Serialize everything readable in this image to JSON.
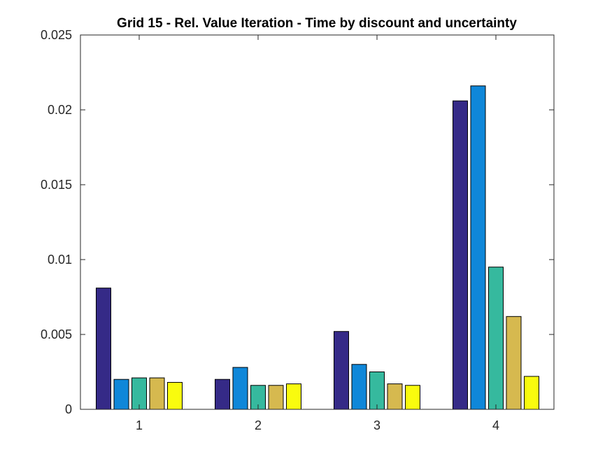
{
  "chart_data": {
    "type": "bar",
    "title": "Grid 15 - Rel. Value Iteration - Time by discount and uncertainty",
    "xlabel": "",
    "ylabel": "",
    "categories": [
      "1",
      "2",
      "3",
      "4"
    ],
    "ylim": [
      0,
      0.025
    ],
    "yticks": [
      0,
      0.005,
      0.01,
      0.015,
      0.02,
      0.025
    ],
    "ytick_labels": [
      "0",
      "0.005",
      "0.01",
      "0.015",
      "0.02",
      "0.025"
    ],
    "grid": false,
    "legend": null,
    "series": [
      {
        "values": [
          0.0081,
          0.002,
          0.0052,
          0.0206
        ],
        "color": "#352a87"
      },
      {
        "values": [
          0.002,
          0.0028,
          0.003,
          0.0216
        ],
        "color": "#0f87d9"
      },
      {
        "values": [
          0.0021,
          0.0016,
          0.0025,
          0.0095
        ],
        "color": "#36b99e"
      },
      {
        "values": [
          0.0021,
          0.0016,
          0.0017,
          0.0062
        ],
        "color": "#d6b94f"
      },
      {
        "values": [
          0.0018,
          0.0017,
          0.0016,
          0.0022
        ],
        "color": "#f9fb0e"
      }
    ]
  }
}
